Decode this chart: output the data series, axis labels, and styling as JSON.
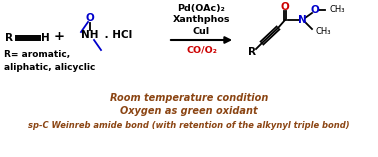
{
  "bg_color": "#ffffff",
  "text_color_black": "#000000",
  "text_color_blue": "#0000cc",
  "text_color_red": "#cc0000",
  "text_color_brown": "#8B4513",
  "bottom_line1": "Room temperature condition",
  "bottom_line2": "Oxygen as green oxidant",
  "bottom_line3": "sp-C Weinreb amide bond (with retention of the alkynyl triple bond)",
  "reagent_line1": "Pd(OAc)₂",
  "reagent_line2": "Xanthphos",
  "reagent_line3": "CuI",
  "reagent_line4": "CO/O₂",
  "fig_width": 3.78,
  "fig_height": 1.57,
  "dpi": 100
}
